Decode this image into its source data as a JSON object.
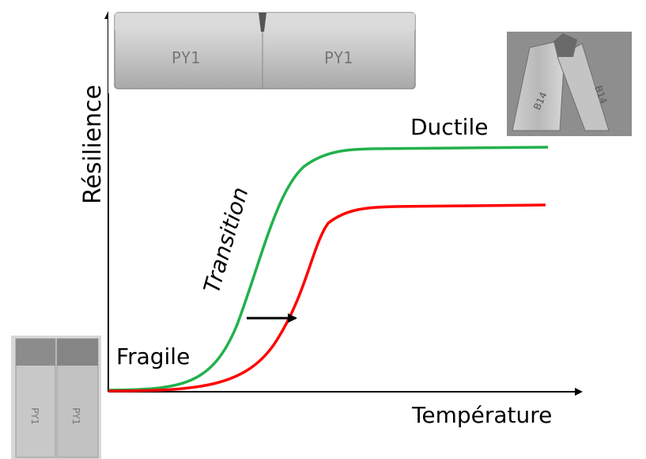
{
  "labels": {
    "y_axis": "Résilience",
    "x_axis": "Température",
    "ductile": "Ductile",
    "fragile": "Fragile",
    "transition": "Transition"
  },
  "specimens": {
    "top_bar_mark_left": "PY1",
    "top_bar_mark_right": "PY1",
    "ductile_sample_mark_left": "B14",
    "ductile_sample_mark_right": "B14",
    "fragile_sample_mark_left": "PY1",
    "fragile_sample_mark_right": "PY1"
  },
  "curves": [
    {
      "color": "#22b14c"
    },
    {
      "color": "#ff0000"
    }
  ],
  "colors": {
    "arrow": "#000000",
    "axes": "#000000"
  }
}
